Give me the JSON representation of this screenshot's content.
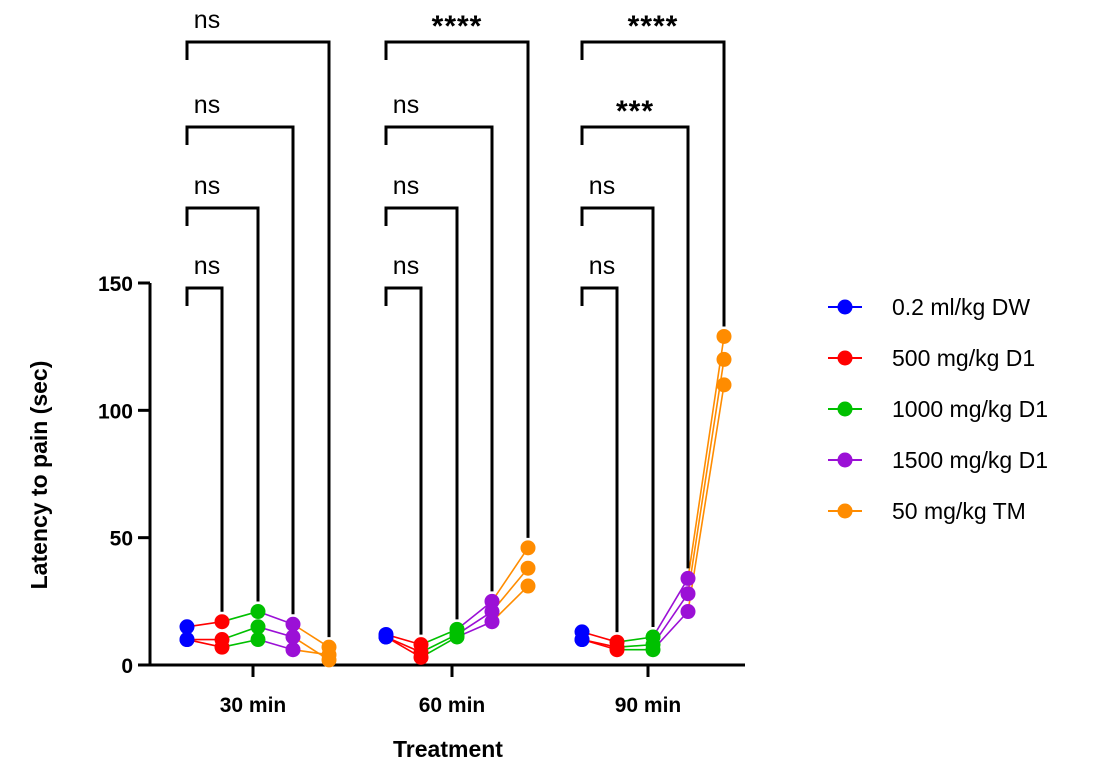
{
  "chart_data": {
    "type": "scatter",
    "xlabel": "Treatment",
    "ylabel": "Latency to pain (sec)",
    "ylim": [
      0,
      150
    ],
    "yticks": [
      "0",
      "50",
      "100",
      "150"
    ],
    "categories": [
      "30 min",
      "60 min",
      "90 min"
    ],
    "legend_position": "right",
    "series": [
      {
        "name": "0.2 ml/kg DW",
        "color": "#0000ff",
        "values": [
          [
            15,
            10,
            10
          ],
          [
            12,
            11,
            11
          ],
          [
            13,
            10,
            10
          ]
        ]
      },
      {
        "name": "500 mg/kg D1",
        "color": "#ff0000",
        "values": [
          [
            17,
            10,
            7
          ],
          [
            8,
            3,
            5
          ],
          [
            9,
            6,
            7
          ]
        ]
      },
      {
        "name": "1000 mg/kg D1",
        "color": "#00c000",
        "values": [
          [
            21,
            15,
            10
          ],
          [
            14,
            11,
            12
          ],
          [
            11,
            6,
            8
          ]
        ]
      },
      {
        "name": "1500 mg/kg D1",
        "color": "#9b10d6",
        "values": [
          [
            16,
            11,
            6
          ],
          [
            25,
            17,
            21
          ],
          [
            34,
            21,
            28
          ]
        ]
      },
      {
        "name": " 50 mg/kg TM",
        "color": "#ff8c00",
        "values": [
          [
            7,
            2,
            4
          ],
          [
            46,
            31,
            38
          ],
          [
            129,
            110,
            120
          ]
        ]
      }
    ],
    "comparisons": [
      {
        "group": "30 min",
        "labels": [
          "ns",
          "ns",
          "ns",
          "ns"
        ]
      },
      {
        "group": "60 min",
        "labels": [
          "ns",
          "ns",
          "ns",
          "****"
        ]
      },
      {
        "group": "90 min",
        "labels": [
          "ns",
          "ns",
          "***",
          "****"
        ]
      }
    ]
  }
}
